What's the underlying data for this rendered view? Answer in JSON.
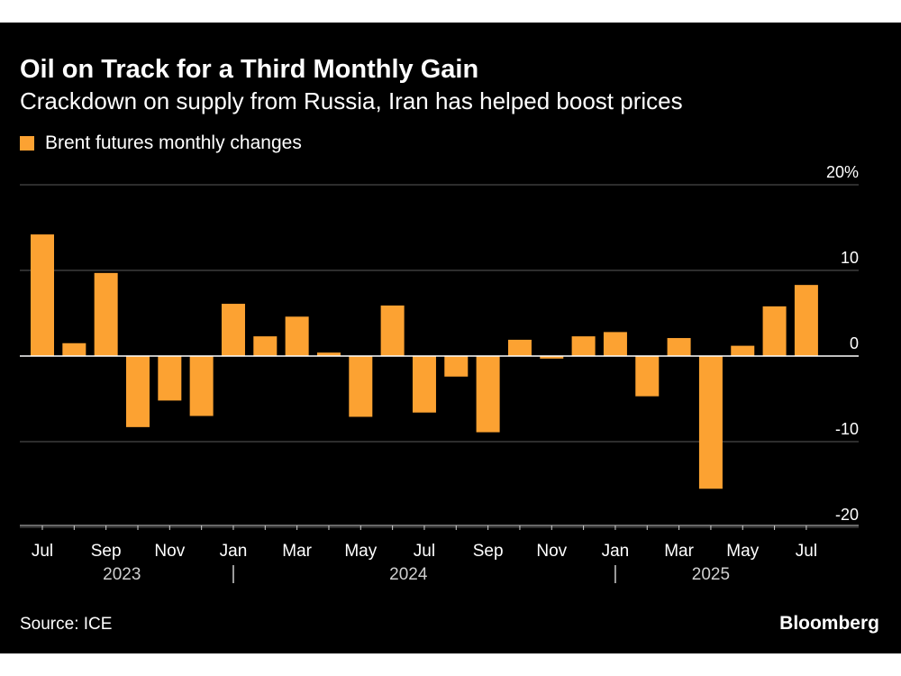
{
  "header": {
    "title": "Oil on Track for a Third Monthly Gain",
    "subtitle": "Crackdown on supply from Russia, Iran has helped boost prices"
  },
  "legend": {
    "label": "Brent futures monthly changes"
  },
  "footer": {
    "source": "Source: ICE",
    "brand": "Bloomberg"
  },
  "colors": {
    "bar": "#fca232",
    "background": "#000000",
    "grid": "#5a5a5a",
    "text": "#ffffff"
  },
  "chart_data": {
    "type": "bar",
    "title": "Oil on Track for a Third Monthly Gain",
    "subtitle": "Crackdown on supply from Russia, Iran has helped boost prices",
    "xlabel": "",
    "ylabel": "",
    "ylim": [
      -20,
      20
    ],
    "yticks": [
      -20,
      -10,
      0,
      10,
      20
    ],
    "ytick_labels": [
      "-20",
      "-10",
      "0",
      "10",
      "20%"
    ],
    "y_axis_side": "right",
    "grid": true,
    "legend_position": "top-left",
    "categories": [
      "Jul 2023",
      "Aug 2023",
      "Sep 2023",
      "Oct 2023",
      "Nov 2023",
      "Dec 2023",
      "Jan 2024",
      "Feb 2024",
      "Mar 2024",
      "Apr 2024",
      "May 2024",
      "Jun 2024",
      "Jul 2024",
      "Aug 2024",
      "Sep 2024",
      "Oct 2024",
      "Nov 2024",
      "Dec 2024",
      "Jan 2025",
      "Feb 2025",
      "Mar 2025",
      "Apr 2025",
      "May 2025",
      "Jun 2025",
      "Jul 2025"
    ],
    "series": [
      {
        "name": "Brent futures monthly changes",
        "values": [
          14.2,
          1.5,
          9.7,
          -8.3,
          -5.2,
          -7.0,
          6.1,
          2.3,
          4.6,
          0.4,
          -7.1,
          5.9,
          -6.6,
          -2.4,
          -8.9,
          1.9,
          -0.3,
          2.3,
          2.8,
          -4.7,
          2.1,
          -15.5,
          1.2,
          5.8,
          8.3
        ]
      }
    ],
    "x_tick_labels": [
      {
        "index": 0,
        "label": "Jul"
      },
      {
        "index": 2,
        "label": "Sep"
      },
      {
        "index": 4,
        "label": "Nov"
      },
      {
        "index": 6,
        "label": "Jan"
      },
      {
        "index": 8,
        "label": "Mar"
      },
      {
        "index": 10,
        "label": "May"
      },
      {
        "index": 12,
        "label": "Jul"
      },
      {
        "index": 14,
        "label": "Sep"
      },
      {
        "index": 16,
        "label": "Nov"
      },
      {
        "index": 18,
        "label": "Jan"
      },
      {
        "index": 20,
        "label": "Mar"
      },
      {
        "index": 22,
        "label": "May"
      },
      {
        "index": 24,
        "label": "Jul"
      }
    ],
    "year_labels": [
      {
        "label": "2023",
        "start_index": 0,
        "end_index": 5
      },
      {
        "label": "2024",
        "start_index": 6,
        "end_index": 17
      },
      {
        "label": "2025",
        "start_index": 18,
        "end_index": 24
      }
    ]
  }
}
